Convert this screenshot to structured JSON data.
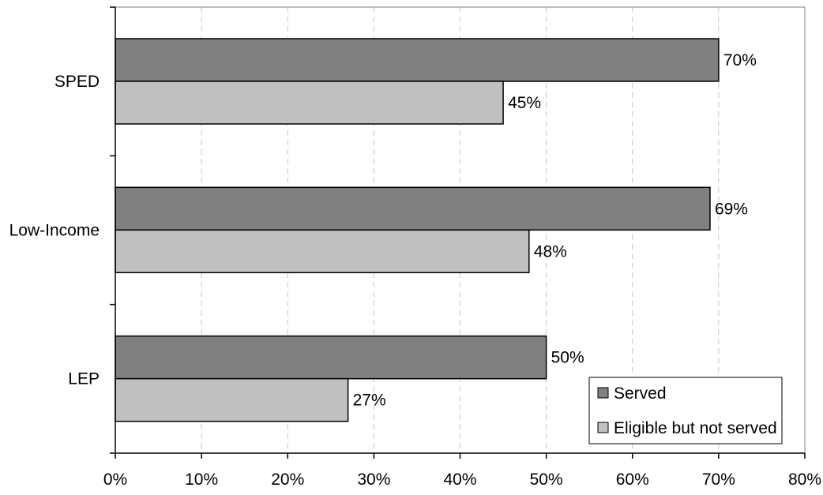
{
  "chart_data": {
    "type": "bar",
    "orientation": "horizontal",
    "categories": [
      "SPED",
      "Low-Income",
      "LEP"
    ],
    "series": [
      {
        "name": "Served",
        "values": [
          70,
          69,
          50
        ],
        "color": "#808080"
      },
      {
        "name": "Eligible but not served",
        "values": [
          45,
          48,
          27
        ],
        "color": "#c0c0c0"
      }
    ],
    "data_labels": [
      [
        "70%",
        "69%",
        "50%"
      ],
      [
        "45%",
        "48%",
        "27%"
      ]
    ],
    "xlim": [
      0,
      80
    ],
    "xticks": [
      "0%",
      "10%",
      "20%",
      "30%",
      "40%",
      "50%",
      "60%",
      "70%",
      "80%"
    ],
    "grid": "vertical dashed",
    "legend_position": "bottom-right",
    "title": "",
    "xlabel": "",
    "ylabel": ""
  }
}
